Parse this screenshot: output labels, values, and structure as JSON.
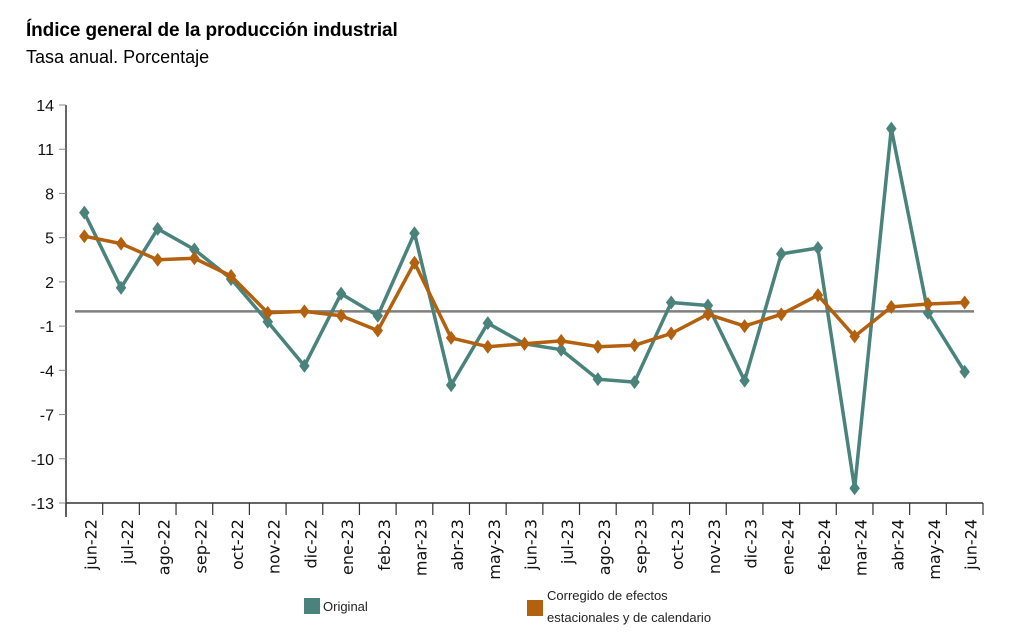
{
  "colors": {
    "original": "#4a837c",
    "corregido": "#b3600f",
    "zero_line": "#7f7f7f",
    "axis": "#333333"
  },
  "chart_data": {
    "type": "line",
    "title": "Índice general de la producción industrial",
    "subtitle": "Tasa anual. Porcentaje",
    "xlabel": "",
    "ylabel": "",
    "ylim": [
      -13,
      14
    ],
    "yticks": [
      14,
      11,
      8,
      5,
      2,
      -1,
      -4,
      -7,
      -10,
      -13
    ],
    "ytick_labels": [
      "14",
      "11",
      "8",
      "5",
      "2",
      "-1",
      "-4",
      "-7",
      "-10",
      "-13"
    ],
    "grid": false,
    "reference_line": 0,
    "legend_position": "bottom",
    "categories": [
      "jun-22",
      "jul-22",
      "ago-22",
      "sep-22",
      "oct-22",
      "nov-22",
      "dic-22",
      "ene-23",
      "feb-23",
      "mar-23",
      "abr-23",
      "may-23",
      "jun-23",
      "jul-23",
      "ago-23",
      "sep-23",
      "oct-23",
      "nov-23",
      "dic-23",
      "ene-24",
      "feb-24",
      "mar-24",
      "abr-24",
      "may-24",
      "jun-24"
    ],
    "series": [
      {
        "name": "Original",
        "color_key": "original",
        "marker": "diamond",
        "values": [
          6.7,
          1.6,
          5.6,
          4.2,
          2.2,
          -0.7,
          -3.7,
          1.2,
          -0.3,
          5.3,
          -5.0,
          -0.8,
          -2.2,
          -2.6,
          -4.6,
          -4.8,
          0.6,
          0.4,
          -4.7,
          3.9,
          4.3,
          -12.0,
          12.4,
          -0.1,
          -4.1
        ]
      },
      {
        "name": "Corregido de efectos estacionales y de calendario",
        "name_lines": [
          "Corregido de efectos",
          "estacionales y de calendario"
        ],
        "color_key": "corregido",
        "marker": "diamond",
        "values": [
          5.1,
          4.6,
          3.5,
          3.6,
          2.4,
          -0.1,
          0.0,
          -0.3,
          -1.3,
          3.3,
          -1.8,
          -2.4,
          -2.2,
          -2.0,
          -2.4,
          -2.3,
          -1.5,
          -0.2,
          -1.0,
          -0.2,
          1.1,
          -1.7,
          0.3,
          0.5,
          0.6
        ]
      }
    ]
  }
}
